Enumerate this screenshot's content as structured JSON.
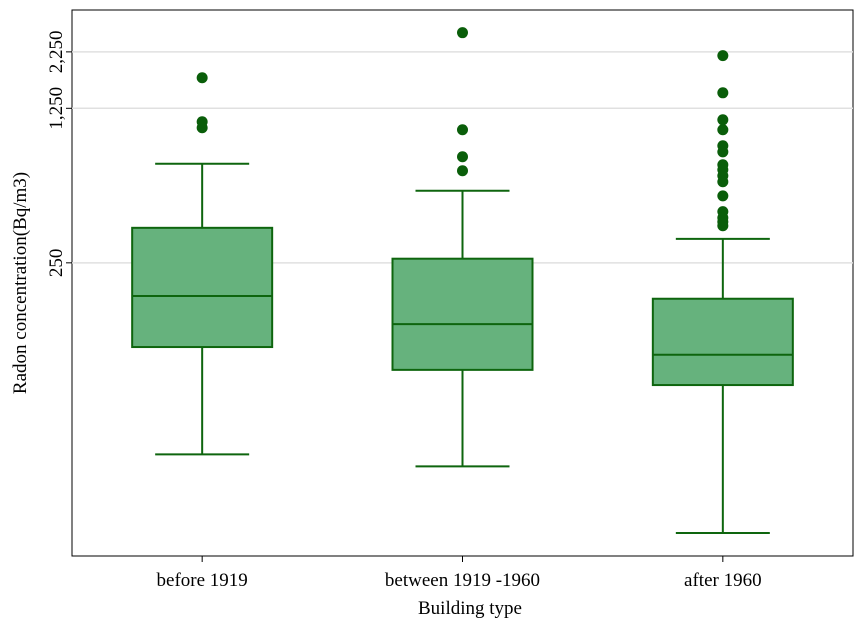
{
  "chart_data": {
    "type": "box",
    "x_label": "Building type",
    "y_label": "Radon concentration(Bq/m3)",
    "categories": [
      "before 1919",
      "between 1919 -1960",
      "after 1960"
    ],
    "boxes": [
      {
        "whisker_low": 34,
        "q1": 104,
        "median": 177,
        "q3": 360,
        "whisker_high": 702,
        "outliers": [
          1718,
          1086,
          1021
        ]
      },
      {
        "whisker_low": 30,
        "q1": 82,
        "median": 132,
        "q3": 261,
        "whisker_high": 530,
        "outliers": [
          2748,
          1000,
          755,
          652
        ]
      },
      {
        "whisker_low": 15,
        "q1": 70,
        "median": 96,
        "q3": 172,
        "whisker_high": 321,
        "outliers": [
          2163,
          1469,
          1109,
          1000,
          846,
          794,
          694,
          659,
          619,
          582,
          502,
          426,
          400,
          383,
          368
        ]
      }
    ],
    "box_color": "#66b27d",
    "line_color": "#0e650e",
    "outlier_color": "#0a5e0a",
    "log_scale": true,
    "ylim": [
      11.8,
      3480
    ],
    "yticks": [
      250,
      {
        "value": 1250,
        "label": "1,250"
      },
      {
        "value": 2250,
        "label": "2,250"
      }
    ],
    "grid": true
  }
}
